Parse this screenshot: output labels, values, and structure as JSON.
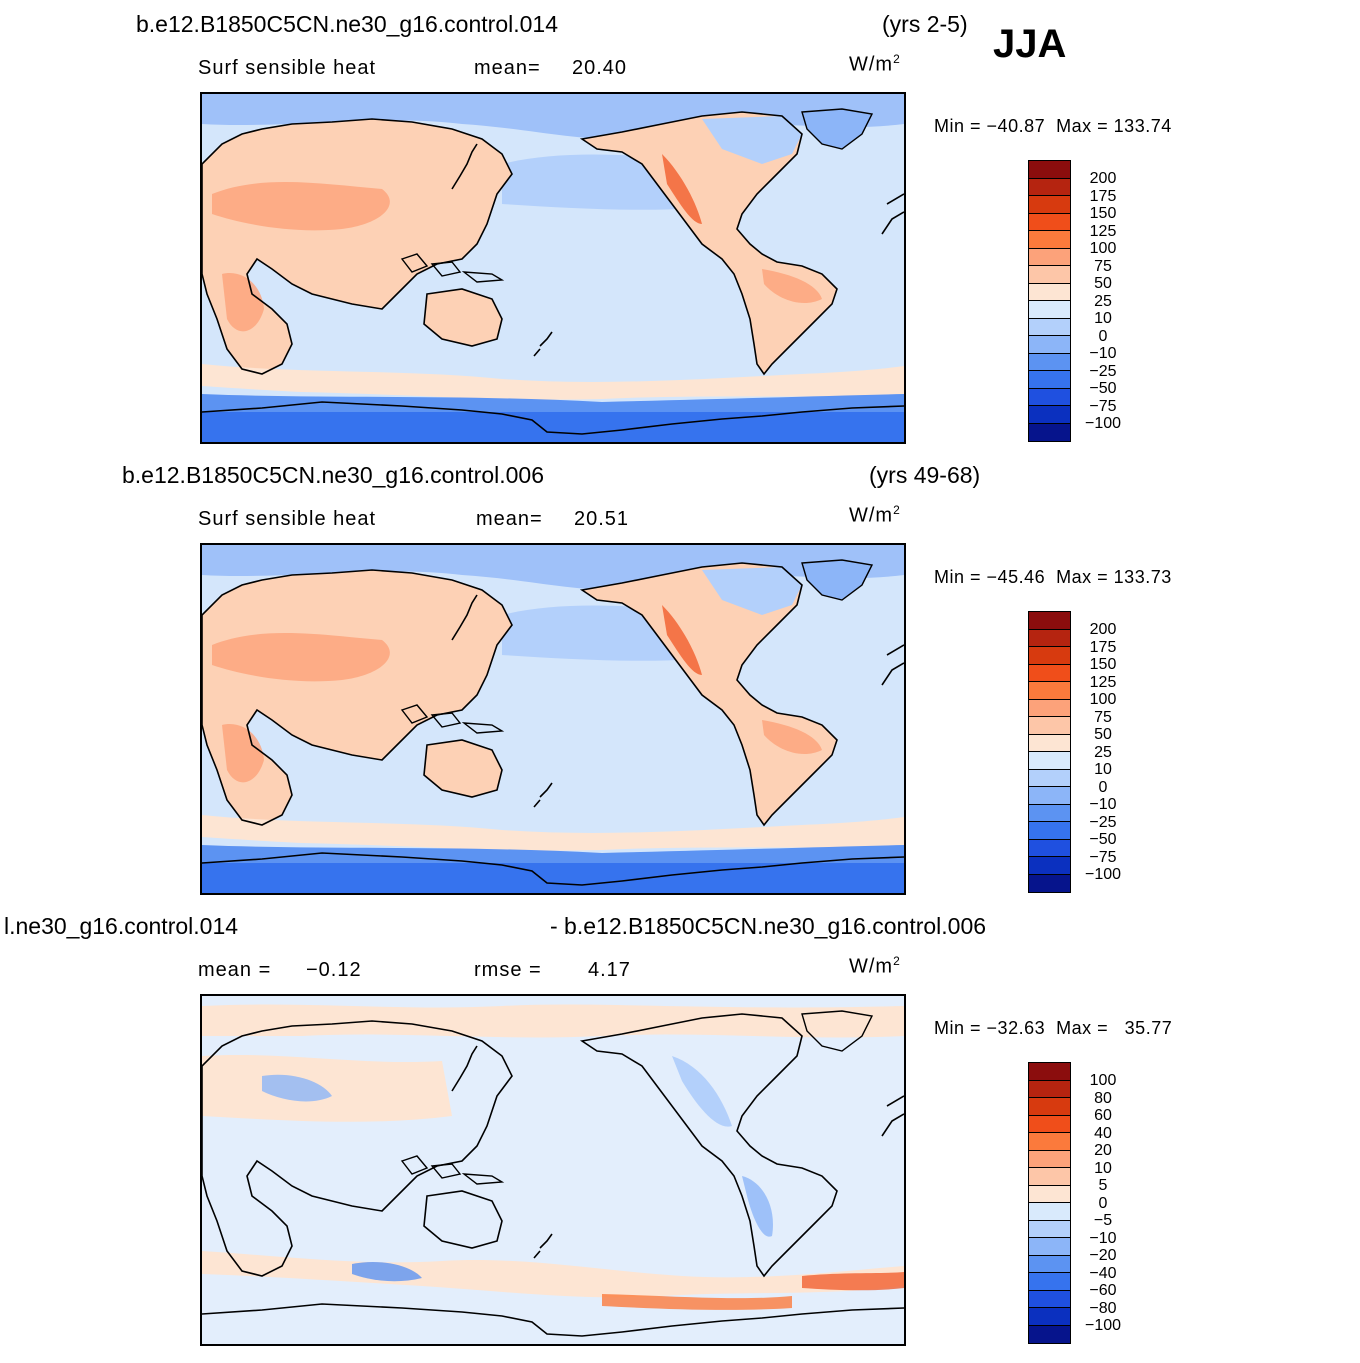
{
  "season": "JJA",
  "units_base": "W/m",
  "units_exp": "2",
  "panels": [
    {
      "case": "b.e12.B1850C5CN.ne30_g16.control.014",
      "years": "(yrs 2-5)",
      "variable": "Surf  sensible  heat",
      "stat1_label": "mean=",
      "stat1_value": "20.40",
      "min_label": "Min  =",
      "min_value": "−40.87",
      "max_label": "Max  =",
      "max_value": "133.74"
    },
    {
      "case": "b.e12.B1850C5CN.ne30_g16.control.006",
      "years": "(yrs 49-68)",
      "variable": "Surf  sensible  heat",
      "stat1_label": "mean=",
      "stat1_value": "20.51",
      "min_label": "Min  =",
      "min_value": "−45.46",
      "max_label": "Max  =",
      "max_value": "133.73"
    },
    {
      "case_left": "l.ne30_g16.control.014",
      "case_right": "- b.e12.B1850C5CN.ne30_g16.control.006",
      "stat1_label": "mean  =",
      "stat1_value": "−0.12",
      "stat2_label": "rmse  =",
      "stat2_value": "4.17",
      "min_label": "Min  =",
      "min_value": "−32.63",
      "max_label": "Max  =",
      "max_value": "35.77"
    }
  ],
  "colorbar_abs": {
    "labels": [
      "200",
      "175",
      "150",
      "125",
      "100",
      "75",
      "50",
      "25",
      "10",
      "0",
      "−10",
      "−25",
      "−50",
      "−75",
      "−100"
    ],
    "colors": [
      "#8b0d0d",
      "#b52410",
      "#d73a0f",
      "#f04e1a",
      "#fb7a3c",
      "#fca27a",
      "#fdc6a8",
      "#fde5d3",
      "#d9eafc",
      "#b3d0fb",
      "#8cb5f8",
      "#5c93f2",
      "#3673ee",
      "#1f50e0",
      "#0b30bf",
      "#06148c"
    ]
  },
  "colorbar_diff": {
    "labels": [
      "100",
      "80",
      "60",
      "40",
      "20",
      "10",
      "5",
      "0",
      "−5",
      "−10",
      "−20",
      "−40",
      "−60",
      "−80",
      "−100"
    ],
    "colors": [
      "#8b0d0d",
      "#b52410",
      "#d73a0f",
      "#f04e1a",
      "#fb7a3c",
      "#fca27a",
      "#fdc6a8",
      "#fde5d3",
      "#d9eafc",
      "#b3d0fb",
      "#8cb5f8",
      "#5c93f2",
      "#3673ee",
      "#1f50e0",
      "#0b30bf",
      "#06148c"
    ]
  }
}
